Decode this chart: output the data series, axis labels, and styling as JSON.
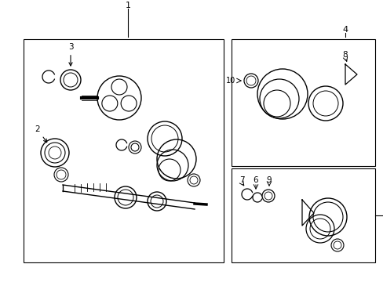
{
  "bg_color": "#ffffff",
  "line_color": "#000000",
  "fig_width": 4.89,
  "fig_height": 3.6,
  "dpi": 100
}
